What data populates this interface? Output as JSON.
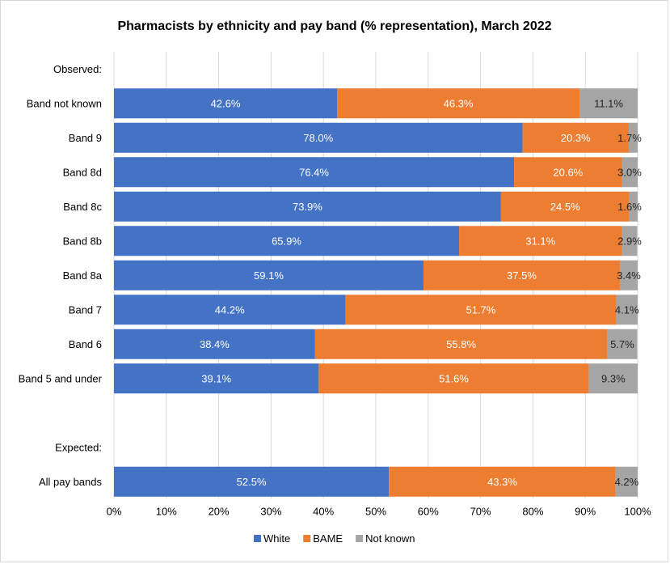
{
  "chart_data": {
    "type": "bar",
    "orientation": "horizontal",
    "stacked": true,
    "title": "Pharmacists by ethnicity and pay band (% representation), March 2022",
    "xlabel": "",
    "ylabel": "",
    "xlim": [
      0,
      100
    ],
    "x_ticks": [
      "0%",
      "10%",
      "20%",
      "30%",
      "40%",
      "50%",
      "60%",
      "70%",
      "80%",
      "90%",
      "100%"
    ],
    "grid": true,
    "legend_position": "bottom",
    "categories": [
      "Observed:",
      "Band not known",
      "Band 9",
      "Band 8d",
      "Band 8c",
      "Band 8b",
      "Band 8a",
      "Band 7",
      "Band 6",
      "Band 5 and under",
      "",
      "Expected:",
      "All pay bands"
    ],
    "series": [
      {
        "name": "White",
        "color": "#4472c4",
        "values": [
          null,
          42.6,
          78.0,
          76.4,
          73.9,
          65.9,
          59.1,
          44.2,
          38.4,
          39.1,
          null,
          null,
          52.5
        ],
        "labels": [
          null,
          "42.6%",
          "78.0%",
          "76.4%",
          "73.9%",
          "65.9%",
          "59.1%",
          "44.2%",
          "38.4%",
          "39.1%",
          null,
          null,
          "52.5%"
        ]
      },
      {
        "name": "BAME",
        "color": "#ed7d31",
        "values": [
          null,
          46.3,
          20.3,
          20.6,
          24.5,
          31.1,
          37.5,
          51.7,
          55.8,
          51.6,
          null,
          null,
          43.3
        ],
        "labels": [
          null,
          "46.3%",
          "20.3%",
          "20.6%",
          "24.5%",
          "31.1%",
          "37.5%",
          "51.7%",
          "55.8%",
          "51.6%",
          null,
          null,
          "43.3%"
        ]
      },
      {
        "name": "Not known",
        "color": "#a5a5a5",
        "values": [
          null,
          11.1,
          1.7,
          3.0,
          1.6,
          2.9,
          3.4,
          4.1,
          5.7,
          9.3,
          null,
          null,
          4.2
        ],
        "labels": [
          null,
          "11.1%",
          "1.7%",
          "3.0%",
          "1.6%",
          "2.9%",
          "3.4%",
          "4.1%",
          "5.7%",
          "9.3%",
          null,
          null,
          "4.2%"
        ]
      }
    ],
    "gridline_color": "#d9d9d9"
  }
}
